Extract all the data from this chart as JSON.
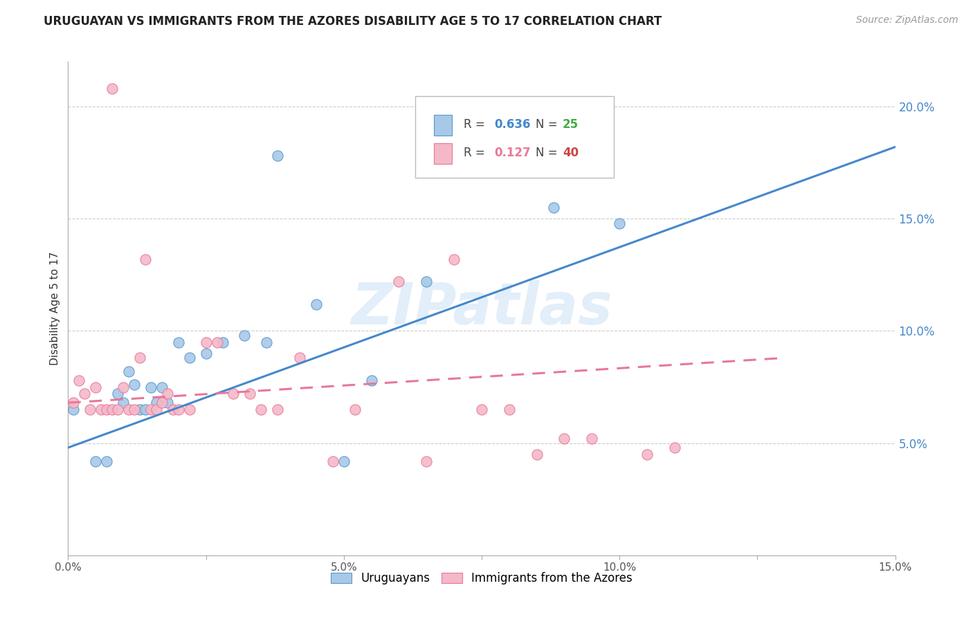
{
  "title": "URUGUAYAN VS IMMIGRANTS FROM THE AZORES DISABILITY AGE 5 TO 17 CORRELATION CHART",
  "source": "Source: ZipAtlas.com",
  "ylabel": "Disability Age 5 to 17",
  "xlim": [
    0,
    0.15
  ],
  "ylim": [
    0.0,
    0.22
  ],
  "xticks": [
    0.0,
    0.025,
    0.05,
    0.075,
    0.1,
    0.125,
    0.15
  ],
  "xtick_labels": [
    "0.0%",
    "",
    "5.0%",
    "",
    "10.0%",
    "",
    "15.0%"
  ],
  "yticks_right": [
    0.05,
    0.1,
    0.15,
    0.2
  ],
  "ytick_labels_right": [
    "5.0%",
    "10.0%",
    "15.0%",
    "20.0%"
  ],
  "gridlines": [
    0.05,
    0.1,
    0.15,
    0.2
  ],
  "blue_color": "#a8c8e8",
  "pink_color": "#f4b8c8",
  "blue_edge_color": "#5599cc",
  "pink_edge_color": "#e87898",
  "blue_line_color": "#4488cc",
  "pink_line_color": "#e87898",
  "r_label_color": "#555555",
  "n_label_color": "#555555",
  "blue_r_val_color": "#4488cc",
  "blue_n_val_color": "#44cc44",
  "pink_r_val_color": "#e87898",
  "pink_n_val_color": "#cc4444",
  "uruguayans_label": "Uruguayans",
  "azores_label": "Immigrants from the Azores",
  "watermark": "ZIPatlas",
  "blue_scatter_x": [
    0.001,
    0.005,
    0.007,
    0.009,
    0.01,
    0.011,
    0.012,
    0.013,
    0.014,
    0.015,
    0.016,
    0.017,
    0.018,
    0.02,
    0.022,
    0.025,
    0.028,
    0.032,
    0.036,
    0.045,
    0.05,
    0.055,
    0.065,
    0.088,
    0.1
  ],
  "blue_scatter_y": [
    0.065,
    0.042,
    0.042,
    0.072,
    0.068,
    0.082,
    0.076,
    0.065,
    0.065,
    0.075,
    0.068,
    0.075,
    0.068,
    0.095,
    0.088,
    0.09,
    0.095,
    0.098,
    0.095,
    0.112,
    0.042,
    0.078,
    0.122,
    0.155,
    0.148
  ],
  "pink_scatter_x": [
    0.001,
    0.002,
    0.003,
    0.004,
    0.005,
    0.006,
    0.007,
    0.008,
    0.009,
    0.01,
    0.011,
    0.012,
    0.013,
    0.014,
    0.015,
    0.016,
    0.017,
    0.018,
    0.019,
    0.02,
    0.022,
    0.025,
    0.027,
    0.03,
    0.033,
    0.035,
    0.038,
    0.042,
    0.048,
    0.052,
    0.06,
    0.065,
    0.07,
    0.075,
    0.08,
    0.085,
    0.09,
    0.095,
    0.105,
    0.11
  ],
  "pink_scatter_y": [
    0.068,
    0.078,
    0.072,
    0.065,
    0.075,
    0.065,
    0.065,
    0.065,
    0.065,
    0.075,
    0.065,
    0.065,
    0.088,
    0.132,
    0.065,
    0.065,
    0.068,
    0.072,
    0.065,
    0.065,
    0.065,
    0.095,
    0.095,
    0.072,
    0.072,
    0.065,
    0.065,
    0.088,
    0.042,
    0.065,
    0.122,
    0.042,
    0.132,
    0.065,
    0.065,
    0.045,
    0.052,
    0.052,
    0.045,
    0.048
  ],
  "blue_outlier_x": [
    0.038
  ],
  "blue_outlier_y": [
    0.178
  ],
  "pink_outlier_x": [
    0.008
  ],
  "pink_outlier_y": [
    0.208
  ],
  "blue_line_x": [
    0.0,
    0.15
  ],
  "blue_line_y": [
    0.048,
    0.182
  ],
  "pink_line_x": [
    0.0,
    0.13
  ],
  "pink_line_y": [
    0.068,
    0.088
  ]
}
